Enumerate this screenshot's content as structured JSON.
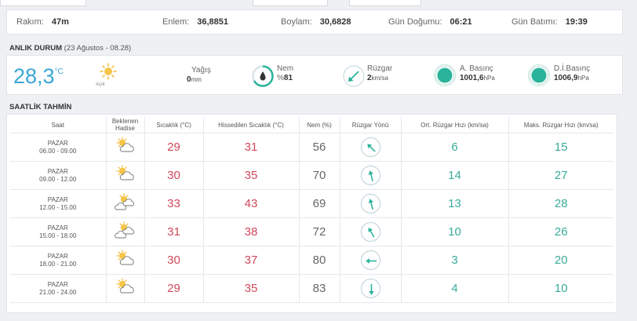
{
  "info": {
    "rakim_label": "Rakım:",
    "rakim_value": "47m",
    "enlem_label": "Enlem:",
    "enlem_value": "36,8851",
    "boylam_label": "Boylam:",
    "boylam_value": "30,6828",
    "gundogumu_label": "Gün Doğumu:",
    "gundogumu_value": "06:21",
    "gunbatimi_label": "Gün Batımı:",
    "gunbatimi_value": "19:39"
  },
  "current": {
    "section_title": "ANLIK DURUM",
    "section_sub": "(23 Ağustos - 08.28)",
    "temperature": "28,3",
    "temp_unit": "°C",
    "condition": "Açık",
    "precip_label": "Yağış",
    "precip_value": "0",
    "precip_unit": "mm",
    "humidity_label": "Nem",
    "humidity_prefix": "%",
    "humidity_value": "81",
    "wind_label": "Rüzgar",
    "wind_value": "2",
    "wind_unit": "km/sa",
    "pressure_label": "A. Basınç",
    "pressure_value": "1001,6",
    "pressure_unit": "hPa",
    "sea_pressure_label": "D.İ.Basınç",
    "sea_pressure_value": "1006,9",
    "sea_pressure_unit": "hPa",
    "colors": {
      "temp": "#3aa7d6",
      "ring": "#2bb39b"
    }
  },
  "hourly": {
    "section_title": "SAATLİK TAHMİN",
    "headers": {
      "saat": "Saat",
      "hadise_1": "Beklenen",
      "hadise_2": "Hadise",
      "sicaklik": "Sıcaklık (°C)",
      "hissedilen": "Hissedilen Sıcaklık (°C)",
      "nem": "Nem (%)",
      "yon": "Rüzgar Yönü",
      "ort": "Ort. Rüzgar Hızı (km/sa)",
      "maks": "Maks. Rüzgar Hızı (km/sa)"
    },
    "rows": [
      {
        "day": "PAZAR",
        "time": "06.00 - 09.00",
        "icon": "partly-cloudy-icon",
        "temp": "29",
        "feels": "31",
        "humidity": "56",
        "wind_dir_deg": 315,
        "avg": "6",
        "max": "15"
      },
      {
        "day": "PAZAR",
        "time": "09.00 - 12.00",
        "icon": "partly-cloudy-icon",
        "temp": "30",
        "feels": "35",
        "humidity": "70",
        "wind_dir_deg": 345,
        "avg": "14",
        "max": "27"
      },
      {
        "day": "PAZAR",
        "time": "12.00 - 15.00",
        "icon": "sun-clouds-icon",
        "temp": "33",
        "feels": "43",
        "humidity": "69",
        "wind_dir_deg": 345,
        "avg": "13",
        "max": "28"
      },
      {
        "day": "PAZAR",
        "time": "15.00 - 18.00",
        "icon": "sun-clouds-icon",
        "temp": "31",
        "feels": "38",
        "humidity": "72",
        "wind_dir_deg": 330,
        "avg": "10",
        "max": "26"
      },
      {
        "day": "PAZAR",
        "time": "18.00 - 21.00",
        "icon": "partly-cloudy-icon",
        "temp": "30",
        "feels": "37",
        "humidity": "80",
        "wind_dir_deg": 270,
        "avg": "3",
        "max": "20"
      },
      {
        "day": "PAZAR",
        "time": "21.00 - 24.00",
        "icon": "partly-cloudy-icon",
        "temp": "29",
        "feels": "35",
        "humidity": "83",
        "wind_dir_deg": 180,
        "avg": "4",
        "max": "10"
      }
    ]
  }
}
